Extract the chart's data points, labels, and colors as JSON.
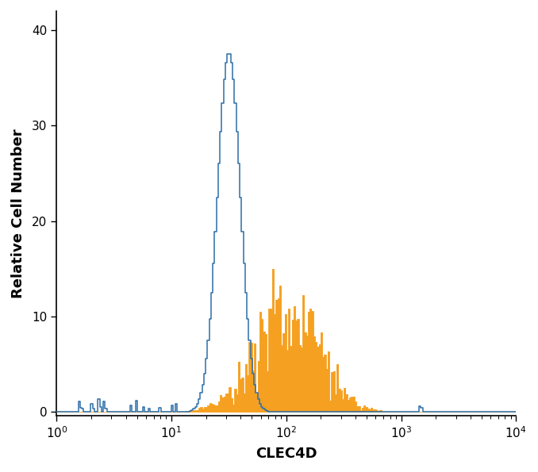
{
  "xlabel": "CLEC4D",
  "ylabel": "Relative Cell Number",
  "xlim": [
    1,
    10000
  ],
  "ylim": [
    -0.4,
    42
  ],
  "yticks": [
    0,
    10,
    20,
    30,
    40
  ],
  "blue_color": "#2B6EA8",
  "orange_color": "#F5A020",
  "background_color": "#ffffff",
  "n_bins": 256,
  "log_min": 0,
  "log_max": 4,
  "blue_peak_log": 1.5,
  "blue_sigma_log": 0.1,
  "blue_peak_height": 37.5,
  "blue_baseline_scale": 0.8,
  "orange_peak_log": 2.0,
  "orange_sigma_log": 0.28,
  "orange_peak_height": 15.0,
  "orange_jag_scale": 0.35,
  "seed": 12345
}
